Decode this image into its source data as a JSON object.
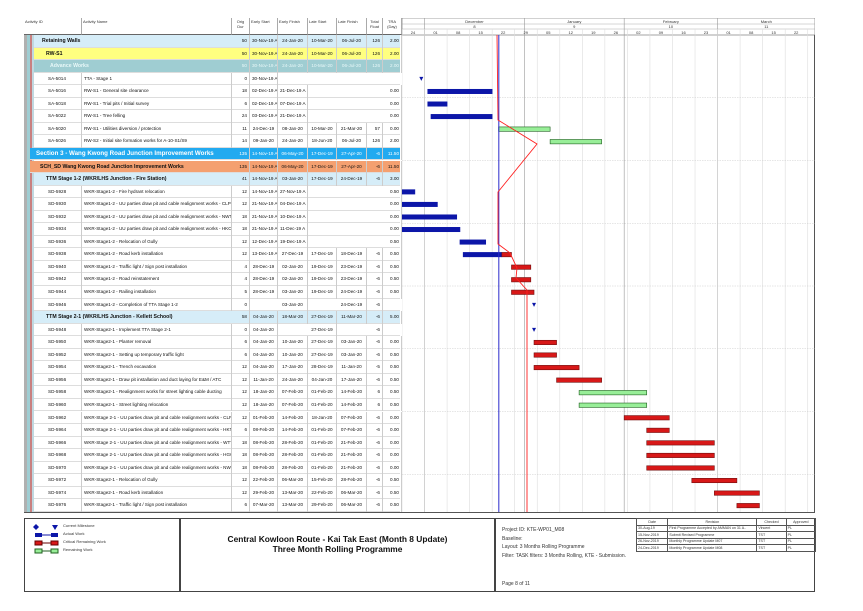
{
  "columns": {
    "id": "Activity ID",
    "name": "Activity Name",
    "dur": "Orig Dur",
    "es": "Early Start",
    "ef": "Early Finish",
    "ls": "Late Start",
    "lf": "Late Finish",
    "tf": "Total Float",
    "tra": "TRA (Day)"
  },
  "timescale": {
    "months": [
      {
        "label": "December",
        "num": "8"
      },
      {
        "label": "January",
        "num": "9"
      },
      {
        "label": "February",
        "num": "10"
      },
      {
        "label": "March",
        "num": "11"
      }
    ],
    "weeks": [
      "24",
      "01",
      "08",
      "15",
      "22",
      "29",
      "05",
      "12",
      "19",
      "26",
      "02",
      "09",
      "16",
      "23",
      "01",
      "08",
      "15",
      "22",
      "29"
    ],
    "start": "2019-11-24",
    "end": "2020-03-31",
    "data_date": "2019-12-24"
  },
  "colors": {
    "actual": "#0c16a8",
    "critical": "#d81818",
    "remaining": "#98ee98",
    "data_date": "#1a2ad0",
    "progress_line": "#ff2020",
    "wbs1": "#d6edf8",
    "wbs2": "#ffff80",
    "wbs3": "#9fcdd2",
    "section": "#22aaf0",
    "sch": "#f4a070"
  },
  "rows": [
    {
      "level": "wbs1",
      "id": "",
      "name": "Retaining Walls",
      "dur": "50",
      "es": "30-Nov-19 A",
      "ef": "24-Jan-20",
      "ls": "10-Mar-20",
      "lf": "06-Jul-20",
      "tf": "126",
      "tra": "2.00",
      "bar": "none"
    },
    {
      "level": "wbs2",
      "id": "",
      "name": "RW-S1",
      "dur": "50",
      "es": "30-Nov-19 A",
      "ef": "24-Jan-20",
      "ls": "10-Mar-20",
      "lf": "06-Jul-20",
      "tf": "126",
      "tra": "2.00",
      "bar": "none"
    },
    {
      "level": "wbs3",
      "id": "",
      "name": "Advance Works",
      "dur": "50",
      "es": "30-Nov-19 A",
      "ef": "24-Jan-20",
      "ls": "10-Mar-20",
      "lf": "06-Jul-20",
      "tf": "126",
      "tra": "2.00",
      "bar": "none"
    },
    {
      "level": "task",
      "id": "SA-5014",
      "name": "TTA - Stage 1",
      "dur": "0",
      "es": "30-Nov-19 A",
      "ef": "",
      "ls": "",
      "lf": "",
      "tf": "",
      "tra": "",
      "bar": "milestone-start"
    },
    {
      "level": "task",
      "id": "SA-5016",
      "name": "RW-S1 - General site clearance",
      "dur": "18",
      "es": "02-Dec-19 A",
      "ef": "21-Dec-19 A",
      "ls": "",
      "lf": "",
      "tf": "",
      "tra": "0.00",
      "bar": "actual"
    },
    {
      "level": "task",
      "id": "SA-5018",
      "name": "RW-S1 - Trial pits / Initial survey",
      "dur": "6",
      "es": "02-Dec-19 A",
      "ef": "07-Dec-19 A",
      "ls": "",
      "lf": "",
      "tf": "",
      "tra": "0.00",
      "bar": "actual"
    },
    {
      "level": "task",
      "id": "SA-5022",
      "name": "RW-S1 - Tree felling",
      "dur": "24",
      "es": "03-Dec-19 A",
      "ef": "21-Dec-19 A",
      "ls": "",
      "lf": "",
      "tf": "",
      "tra": "0.00",
      "bar": "actual"
    },
    {
      "level": "task",
      "id": "SA-5020",
      "name": "RW-S1 - Utilities diversion / protection",
      "dur": "11",
      "es": "24-Dec-19",
      "ef": "08-Jan-20",
      "ls": "10-Mar-20",
      "lf": "21-Mar-20",
      "tf": "57",
      "tra": "0.00",
      "bar": "remaining"
    },
    {
      "level": "task",
      "id": "SA-5026",
      "name": "RW-S2 - Initial site formation works for A-10-S1/S9",
      "dur": "14",
      "es": "09-Jan-20",
      "ef": "24-Jan-20",
      "ls": "18-Jun-20",
      "lf": "06-Jul-20",
      "tf": "126",
      "tra": "2.00",
      "bar": "remaining"
    },
    {
      "level": "section",
      "id": "",
      "name": "Section 3 - Wang Kwong Road Junction Improvement Works",
      "dur": "135",
      "es": "14-Nov-19 A",
      "ef": "06-May-20",
      "ls": "17-Dec-19",
      "lf": "27-Apr-20",
      "tf": "-6",
      "tra": "11.50",
      "bar": "none"
    },
    {
      "level": "sch",
      "id": "",
      "name": "SCH_SD Wang Kwong Road Junction Improvement Works",
      "dur": "135",
      "es": "14-Nov-19 A",
      "ef": "06-May-20",
      "ls": "17-Dec-19",
      "lf": "27-Apr-20",
      "tf": "-6",
      "tra": "11.50",
      "bar": "none"
    },
    {
      "level": "ttm",
      "id": "",
      "name": "TTM Stage 1-2 (WKR/LHS Junction - Fire Station)",
      "dur": "41",
      "es": "14-Nov-19 A",
      "ef": "03-Jan-20",
      "ls": "17-Dec-19",
      "lf": "24-Dec-19",
      "tf": "-6",
      "tra": "3.00",
      "bar": "none"
    },
    {
      "level": "task",
      "id": "SD-5928",
      "name": "WKR-Stage1-2 - Fire hydrant relocation",
      "dur": "12",
      "es": "14-Nov-19 A",
      "ef": "27-Nov-19 A",
      "ls": "",
      "lf": "",
      "tf": "",
      "tra": "0.50",
      "bar": "actual"
    },
    {
      "level": "task",
      "id": "SD-5930",
      "name": "WKR-Stage1-2 - UU parties draw pit and cable realignment works - CLP",
      "dur": "12",
      "es": "21-Nov-19 A",
      "ef": "04-Dec-19 A",
      "ls": "",
      "lf": "",
      "tf": "",
      "tra": "0.00",
      "bar": "actual"
    },
    {
      "level": "task",
      "id": "SD-5932",
      "name": "WKR-Stage1-2 - UU parties draw pit and cable realignment works - NWT",
      "dur": "18",
      "es": "21-Nov-19 A",
      "ef": "10-Dec-19 A",
      "ls": "",
      "lf": "",
      "tf": "",
      "tra": "0.00",
      "bar": "actual"
    },
    {
      "level": "task",
      "id": "SD-5934",
      "name": "WKR-Stage1-2 - UU parties draw pit and cable realignment works - HKCTV",
      "dur": "18",
      "es": "21-Nov-19 A",
      "ef": "11-Dec-19 A",
      "ls": "",
      "lf": "",
      "tf": "",
      "tra": "0.00",
      "bar": "actual"
    },
    {
      "level": "task",
      "id": "SD-5936",
      "name": "WKR-Stage1-2 - Relocation of Gully",
      "dur": "12",
      "es": "12-Dec-19 A",
      "ef": "19-Dec-19 A",
      "ls": "",
      "lf": "",
      "tf": "",
      "tra": "0.50",
      "bar": "actual"
    },
    {
      "level": "task",
      "id": "SD-5938",
      "name": "WKR-Stage1-2 - Road kerb installation",
      "dur": "12",
      "es": "13-Dec-19 A",
      "ef": "27-Dec-19",
      "ls": "17-Dec-19",
      "lf": "18-Dec-19",
      "tf": "-6",
      "tra": "0.50",
      "bar": "actual-critical"
    },
    {
      "level": "task",
      "id": "SD-5940",
      "name": "WKR-Stage1-2 - Traffic light / Sign post installation",
      "dur": "4",
      "es": "28-Dec-19",
      "ef": "02-Jan-20",
      "ls": "19-Dec-19",
      "lf": "23-Dec-19",
      "tf": "-6",
      "tra": "0.50",
      "bar": "critical"
    },
    {
      "level": "task",
      "id": "SD-5942",
      "name": "WKR-Stage1-2 - Road reinstatement",
      "dur": "4",
      "es": "28-Dec-19",
      "ef": "02-Jan-20",
      "ls": "19-Dec-19",
      "lf": "23-Dec-19",
      "tf": "-6",
      "tra": "0.50",
      "bar": "critical"
    },
    {
      "level": "task",
      "id": "SD-5944",
      "name": "WKR-Stage1-2 - Railing installation",
      "dur": "5",
      "es": "28-Dec-19",
      "ef": "03-Jan-20",
      "ls": "19-Dec-19",
      "lf": "24-Dec-19",
      "tf": "-6",
      "tra": "0.50",
      "bar": "critical"
    },
    {
      "level": "task",
      "id": "SD-5946",
      "name": "WKR-Stage1-2 - Completion of TTA Stage 1-2",
      "dur": "0",
      "es": "",
      "ef": "03-Jan-20",
      "ls": "",
      "lf": "24-Dec-19",
      "tf": "-6",
      "tra": "",
      "bar": "milestone-finish"
    },
    {
      "level": "ttm",
      "id": "",
      "name": "TTM Stage 2-1 (WKR/LHS Junction - Kellett School)",
      "dur": "58",
      "es": "04-Jan-20",
      "ef": "18-Mar-20",
      "ls": "27-Dec-19",
      "lf": "11-Mar-20",
      "tf": "-6",
      "tra": "5.00",
      "bar": "none"
    },
    {
      "level": "task",
      "id": "SD-5948",
      "name": "WKR-Stage2-1 - Implement TTA Stage 2-1",
      "dur": "0",
      "es": "04-Jan-20",
      "ef": "",
      "ls": "27-Dec-19",
      "lf": "",
      "tf": "-6",
      "tra": "",
      "bar": "milestone-start"
    },
    {
      "level": "task",
      "id": "SD-5950",
      "name": "WKR-Stage2-1 - Planter removal",
      "dur": "6",
      "es": "04-Jan-20",
      "ef": "10-Jan-20",
      "ls": "27-Dec-19",
      "lf": "03-Jan-20",
      "tf": "-6",
      "tra": "0.00",
      "bar": "critical"
    },
    {
      "level": "task",
      "id": "SD-5952",
      "name": "WKR-Stage2-1 - Setting up temporary traffic light",
      "dur": "6",
      "es": "04-Jan-20",
      "ef": "10-Jan-20",
      "ls": "27-Dec-19",
      "lf": "03-Jan-20",
      "tf": "-6",
      "tra": "0.50",
      "bar": "critical"
    },
    {
      "level": "task",
      "id": "SD-5954",
      "name": "WKR-Stage2-1 - Trench excavation",
      "dur": "12",
      "es": "04-Jan-20",
      "ef": "17-Jan-20",
      "ls": "28-Dec-19",
      "lf": "11-Jan-20",
      "tf": "-5",
      "tra": "0.50",
      "bar": "critical"
    },
    {
      "level": "task",
      "id": "SD-5956",
      "name": "WKR-Stage2-1 - Draw pit installation and duct laying for E&M / ATC",
      "dur": "12",
      "es": "11-Jan-20",
      "ef": "24-Jan-20",
      "ls": "04-Jan-20",
      "lf": "17-Jan-20",
      "tf": "-6",
      "tra": "0.50",
      "bar": "critical"
    },
    {
      "level": "task",
      "id": "SD-5958",
      "name": "WKR-Stage2-1 - Realignment works for street lighting cable ducting",
      "dur": "12",
      "es": "18-Jan-20",
      "ef": "07-Feb-20",
      "ls": "01-Feb-20",
      "lf": "14-Feb-20",
      "tf": "6",
      "tra": "0.50",
      "bar": "remaining"
    },
    {
      "level": "task",
      "id": "SD-5960",
      "name": "WKR-Stage2-1 - Street lighting relocation",
      "dur": "12",
      "es": "18-Jan-20",
      "ef": "07-Feb-20",
      "ls": "01-Feb-20",
      "lf": "14-Feb-20",
      "tf": "6",
      "tra": "0.50",
      "bar": "remaining"
    },
    {
      "level": "task",
      "id": "SD-5962",
      "name": "WKR-Stage 2-1 - UU parties draw pit and cable realignment works - CLP",
      "dur": "12",
      "es": "01-Feb-20",
      "ef": "14-Feb-20",
      "ls": "18-Jan-20",
      "lf": "07-Feb-20",
      "tf": "-6",
      "tra": "0.00",
      "bar": "critical"
    },
    {
      "level": "task",
      "id": "SD-5964",
      "name": "WKR-Stage 2-1 - UU parties draw pit and cable realignment works - HKTC",
      "dur": "6",
      "es": "08-Feb-20",
      "ef": "14-Feb-20",
      "ls": "01-Feb-20",
      "lf": "07-Feb-20",
      "tf": "-6",
      "tra": "0.00",
      "bar": "critical"
    },
    {
      "level": "task",
      "id": "SD-5966",
      "name": "WKR-Stage 2-1 - UU parties draw pit and cable realignment works - WTT",
      "dur": "18",
      "es": "08-Feb-20",
      "ef": "28-Feb-20",
      "ls": "01-Feb-20",
      "lf": "21-Feb-20",
      "tf": "-6",
      "tra": "0.00",
      "bar": "critical"
    },
    {
      "level": "task",
      "id": "SD-5968",
      "name": "WKR-Stage 2-1 - UU parties draw pit and cable realignment works - HGC",
      "dur": "18",
      "es": "08-Feb-20",
      "ef": "28-Feb-20",
      "ls": "01-Feb-20",
      "lf": "21-Feb-20",
      "tf": "-6",
      "tra": "0.00",
      "bar": "critical"
    },
    {
      "level": "task",
      "id": "SD-5970",
      "name": "WKR-Stage 2-1 - UU parties draw pit and cable realignment works - NWT",
      "dur": "18",
      "es": "08-Feb-20",
      "ef": "28-Feb-20",
      "ls": "01-Feb-20",
      "lf": "21-Feb-20",
      "tf": "-6",
      "tra": "0.00",
      "bar": "critical"
    },
    {
      "level": "task",
      "id": "SD-5972",
      "name": "WKR-Stage2-1 - Relocation of Gully",
      "dur": "12",
      "es": "22-Feb-20",
      "ef": "06-Mar-20",
      "ls": "15-Feb-20",
      "lf": "28-Feb-20",
      "tf": "-6",
      "tra": "0.50",
      "bar": "critical"
    },
    {
      "level": "task",
      "id": "SD-5974",
      "name": "WKR-Stage2-1 - Road kerb installation",
      "dur": "12",
      "es": "29-Feb-20",
      "ef": "13-Mar-20",
      "ls": "22-Feb-20",
      "lf": "06-Mar-20",
      "tf": "-6",
      "tra": "0.50",
      "bar": "critical"
    },
    {
      "level": "task",
      "id": "SD-5976",
      "name": "WKR-Stage2-1 - Traffic light / Sign post installation",
      "dur": "6",
      "es": "07-Mar-20",
      "ef": "13-Mar-20",
      "ls": "29-Feb-20",
      "lf": "06-Mar-20",
      "tf": "-6",
      "tra": "0.50",
      "bar": "critical"
    }
  ],
  "legend": {
    "milestone": "Current Milestone",
    "actual": "Actual Work",
    "critical": "Critical Remaining Work",
    "remaining": "Remaining Work"
  },
  "title": {
    "line1": "Central Kowloon Route - Kai Tak East (Month 8 Update)",
    "line2": "Three Month Rolling Programme"
  },
  "info": {
    "project": "Project ID: KTE-WP01_M08",
    "baseline": "Baseline:",
    "layout": "Layout: 3 Months Rolling Programme",
    "filter": "Filter: TASK filters: 3 Months Rolling, KTE - Submission.",
    "page": "Page 8 of 11"
  },
  "revisions": {
    "headers": [
      "Date",
      "Revision",
      "Checked",
      "Approved"
    ],
    "rows": [
      [
        "30-Aug-19",
        "First Programme Accepted by AMMAN on 31 A..",
        "Vincent",
        "PL"
      ],
      [
        "15-Nov-2019",
        "Submit Revised Programme",
        "TST",
        "PL"
      ],
      [
        "26-Nov-2019",
        "Monthly Programme Update M07",
        "TST",
        "PL"
      ],
      [
        "24-Dec-2019",
        "Monthly Programme Update M08",
        "TST",
        "PL"
      ]
    ]
  }
}
